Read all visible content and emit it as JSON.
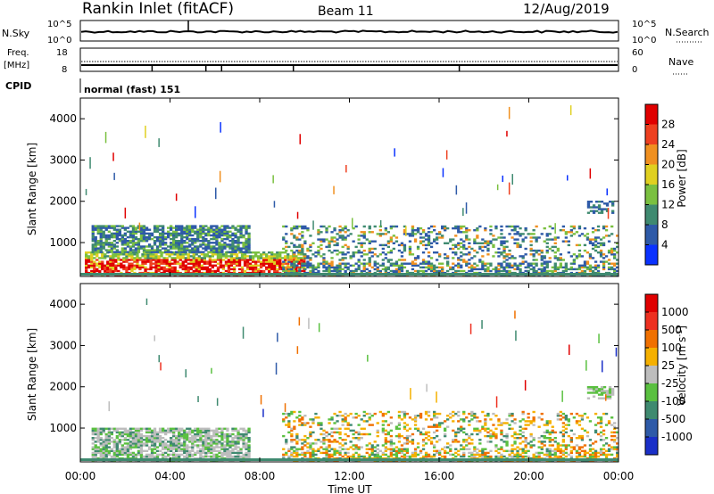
{
  "header": {
    "station": "Rankin Inlet (fitACF)",
    "beam": "Beam 11",
    "date": "12/Aug/2019"
  },
  "status_panels": {
    "nsky": {
      "label": "N.Sky",
      "ticks": [
        "10^5",
        "10^0"
      ]
    },
    "nsearch": {
      "label": "N.Search",
      "ticks": [
        "10^5",
        "10^0"
      ]
    },
    "freq": {
      "label_line1": "Freq.",
      "label_line2": "[MHz]",
      "ticks": [
        "18",
        "8"
      ]
    },
    "nave": {
      "label": "Nave",
      "ticks": [
        "60",
        "0"
      ]
    },
    "cpid": {
      "label": "CPID",
      "value": "normal (fast) 151"
    }
  },
  "x_axis": {
    "label": "Time UT",
    "ticks": [
      "00:00",
      "04:00",
      "08:00",
      "12:00",
      "16:00",
      "20:00",
      "00:00"
    ],
    "range_hours": [
      0,
      24
    ]
  },
  "chart_data": [
    {
      "type": "heatmap",
      "name": "power",
      "ylabel": "Slant Range [km]",
      "yticks": [
        "1000",
        "2000",
        "3000",
        "4000"
      ],
      "ylim": [
        180,
        4500
      ],
      "colorbar_label": "Power [dB]",
      "colorbar_ticks": [
        "4",
        "8",
        "12",
        "16",
        "20",
        "24",
        "28"
      ],
      "colors": [
        "#0a32ff",
        "#2e5aa8",
        "#3f8a70",
        "#7ac040",
        "#e0d020",
        "#f09020",
        "#ee4020",
        "#e00000"
      ],
      "echo_regions": [
        {
          "t0": 0.2,
          "t1": 10.0,
          "r0": 200,
          "r1": 750,
          "level": "high"
        },
        {
          "t0": 0.5,
          "t1": 7.5,
          "r0": 750,
          "r1": 1400,
          "level": "mid"
        },
        {
          "t0": 9.0,
          "t1": 24.0,
          "r0": 200,
          "r1": 1400,
          "level": "mixed"
        },
        {
          "t0": 22.6,
          "t1": 23.7,
          "r0": 1700,
          "r1": 2000,
          "level": "low"
        }
      ]
    },
    {
      "type": "heatmap",
      "name": "velocity",
      "ylabel": "Slant Range [km]",
      "yticks": [
        "1000",
        "2000",
        "3000",
        "4000"
      ],
      "ylim": [
        180,
        4500
      ],
      "colorbar_label_main": "Velocity",
      "colorbar_label_units": "[m s",
      "colorbar_label_exp": "-1",
      "colorbar_label_close": "]",
      "colorbar_ticks": [
        "1000",
        "500",
        "100",
        "25",
        "-25",
        "-100",
        "-500",
        "-1000"
      ],
      "colors": [
        "#1a2fc8",
        "#2e5aa8",
        "#3f8a70",
        "#5ac040",
        "#bdbdbd",
        "#f5b000",
        "#f07000",
        "#ee3020",
        "#e00000"
      ],
      "echo_regions": [
        {
          "t0": 0.5,
          "t1": 7.5,
          "r0": 200,
          "r1": 1000,
          "level": "ground"
        },
        {
          "t0": 9.0,
          "t1": 24.0,
          "r0": 200,
          "r1": 1400,
          "level": "mixed"
        },
        {
          "t0": 22.6,
          "t1": 23.7,
          "r0": 1700,
          "r1": 2000,
          "level": "low"
        }
      ]
    }
  ]
}
